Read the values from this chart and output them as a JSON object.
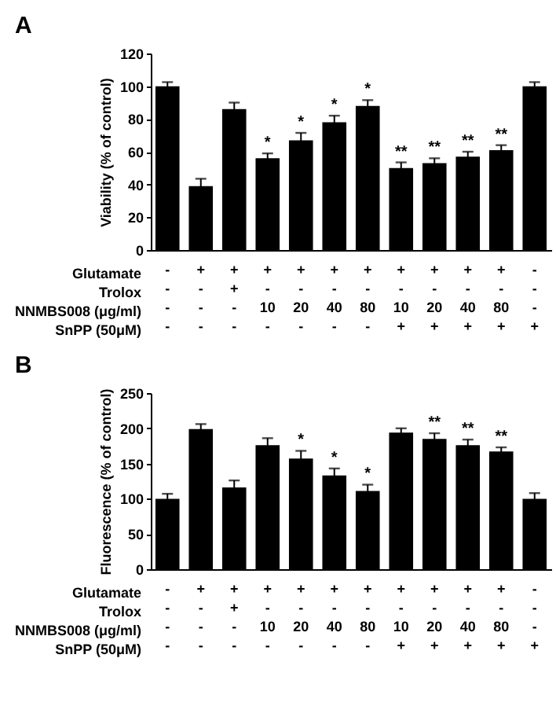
{
  "chart_data": [
    {
      "type": "bar",
      "title": "A",
      "ylabel": "Viability (% of control)",
      "categories": [
        "-\n-\n-\n-",
        "+\n-\n-\n-",
        "+\n+\n-\n-",
        "+\n-\n10\n-",
        "+\n-\n20\n-",
        "+\n-\n40\n-",
        "+\n-\n80\n-",
        "+\n-\n10\n+",
        "+\n-\n20\n+",
        "+\n-\n40\n+",
        "+\n-\n80\n+",
        "-\n-\n-\n+"
      ],
      "values": [
        100,
        39,
        86,
        56,
        67,
        78,
        88,
        50,
        53,
        57,
        61,
        100
      ],
      "color": "#000000",
      "errors": [
        2.5,
        4.5,
        4,
        3,
        4.5,
        4,
        3.5,
        3.5,
        3,
        3,
        3,
        2.5
      ],
      "value_labels": [
        null,
        null,
        null,
        "*",
        "*",
        "*",
        "*",
        "**",
        "**",
        "**",
        "**",
        null
      ],
      "annotations": [
        "Glutamate",
        "Trolox",
        "NNMBS008 (μg/ml)",
        "SnPP (50μM)"
      ],
      "ylim": [
        0,
        120
      ],
      "yticks": [
        0,
        20,
        40,
        60,
        80,
        100,
        120
      ],
      "grid": false
    },
    {
      "type": "bar",
      "title": "B",
      "ylabel": "Fluorescence (% of control)",
      "categories": [
        "-\n-\n-\n-",
        "+\n-\n-\n-",
        "+\n+\n-\n-",
        "+\n-\n10\n-",
        "+\n-\n20\n-",
        "+\n-\n40\n-",
        "+\n-\n80\n-",
        "+\n-\n10\n+",
        "+\n-\n20\n+",
        "+\n-\n40\n+",
        "+\n-\n80\n+",
        "-\n-\n-\n+"
      ],
      "values": [
        100,
        199,
        116,
        176,
        157,
        133,
        111,
        194,
        185,
        176,
        167,
        100
      ],
      "color": "#000000",
      "errors": [
        7,
        7,
        10,
        10,
        11,
        10,
        9,
        6,
        8,
        8,
        6,
        8
      ],
      "value_labels": [
        null,
        null,
        null,
        null,
        "*",
        "*",
        "*",
        null,
        "**",
        "**",
        "**",
        null
      ],
      "annotations": [
        "Glutamate",
        "Trolox",
        "NNMBS008 (μg/ml)",
        "SnPP (50μM)"
      ],
      "ylim": [
        0,
        250
      ],
      "yticks": [
        0,
        50,
        100,
        150,
        200,
        250
      ],
      "grid": false
    }
  ]
}
